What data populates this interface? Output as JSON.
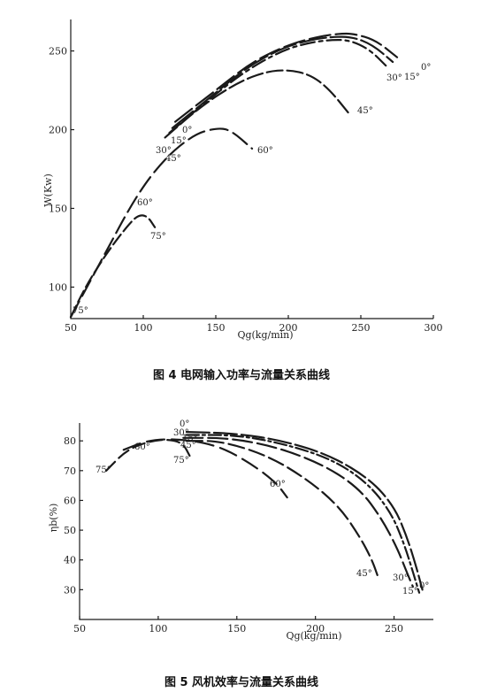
{
  "chart_data": [
    {
      "type": "line",
      "title": "图 4  电网输入功率与流量关系曲线",
      "xlabel": "Qg(kg/min)",
      "ylabel": "W(Kw)",
      "xlim": [
        50,
        300
      ],
      "ylim": [
        80,
        270
      ],
      "xticks": [
        "50",
        "100",
        "150",
        "200",
        "250",
        "300"
      ],
      "yticks": [
        "100",
        "150",
        "200",
        "250"
      ],
      "grid": false,
      "series": [
        {
          "name": "0°",
          "x": [
            122,
            150,
            175,
            200,
            220,
            235,
            245,
            260,
            275
          ],
          "y": [
            205,
            225,
            243,
            254,
            259,
            261,
            261,
            257,
            246
          ]
        },
        {
          "name": "15°",
          "x": [
            120,
            148,
            172,
            196,
            215,
            230,
            244,
            258,
            272
          ],
          "y": [
            201,
            222,
            240,
            252,
            257,
            259,
            259,
            254,
            243
          ]
        },
        {
          "name": "30°",
          "x": [
            118,
            145,
            170,
            195,
            213,
            228,
            242,
            256,
            268
          ],
          "y": [
            198,
            219,
            237,
            250,
            255,
            257,
            257,
            251,
            240
          ]
        },
        {
          "name": "45°",
          "x": [
            115,
            140,
            165,
            185,
            200,
            215,
            228,
            242
          ],
          "y": [
            195,
            215,
            230,
            237,
            238,
            235,
            226,
            210
          ]
        },
        {
          "name": "60°",
          "x": [
            50,
            70,
            95,
            115,
            135,
            150,
            160,
            175
          ],
          "y": [
            81,
            115,
            158,
            182,
            197,
            201,
            200,
            188
          ]
        },
        {
          "name": "75°",
          "x": [
            50,
            60,
            75,
            90,
            97,
            103,
            108
          ],
          "y": [
            81,
            100,
            122,
            140,
            146,
            145,
            138
          ]
        }
      ],
      "annotations": [
        "0°",
        "15°",
        "30°",
        "45°",
        "60°",
        "75°",
        "0°",
        "15°",
        "30°",
        "45°",
        "60°",
        "75°",
        "75°"
      ]
    },
    {
      "type": "line",
      "title": "图 5  风机效率与流量关系曲线",
      "xlabel": "Qg(kg/min)",
      "ylabel": "ηb(%)",
      "xlim": [
        50,
        275
      ],
      "ylim": [
        20,
        86
      ],
      "xticks": [
        "50",
        "100",
        "150",
        "200",
        "250"
      ],
      "yticks": [
        "30",
        "40",
        "50",
        "60",
        "70",
        "80"
      ],
      "grid": false,
      "series": [
        {
          "name": "0°",
          "x": [
            118,
            150,
            180,
            210,
            235,
            250,
            258,
            264,
            268
          ],
          "y": [
            83,
            82.5,
            80,
            75,
            67,
            58,
            48,
            38,
            30
          ]
        },
        {
          "name": "15°",
          "x": [
            118,
            150,
            180,
            210,
            233,
            248,
            256,
            262,
            266
          ],
          "y": [
            82,
            82,
            79,
            74,
            66,
            56,
            46,
            36,
            29
          ]
        },
        {
          "name": "30°",
          "x": [
            116,
            145,
            175,
            205,
            228,
            242,
            252,
            258,
            262
          ],
          "y": [
            81,
            81,
            78,
            72,
            64,
            54,
            44,
            36,
            31
          ]
        },
        {
          "name": "45°",
          "x": [
            118,
            140,
            170,
            195,
            215,
            228,
            236,
            240
          ],
          "y": [
            80,
            80,
            75,
            67,
            58,
            48,
            40,
            34
          ]
        },
        {
          "name": "60°",
          "x": [
            78,
            95,
            118,
            140,
            160,
            175,
            182
          ],
          "y": [
            77,
            80.5,
            80.5,
            78,
            72,
            66,
            61
          ]
        },
        {
          "name": "75°",
          "x": [
            67,
            80,
            95,
            108,
            116,
            120
          ],
          "y": [
            70,
            77,
            80,
            80.5,
            79,
            75
          ]
        }
      ],
      "annotations": [
        "0°",
        "15°",
        "30°",
        "45°",
        "60°",
        "75°",
        "0°",
        "15°",
        "30°",
        "45°",
        "60°",
        "75°"
      ]
    }
  ]
}
